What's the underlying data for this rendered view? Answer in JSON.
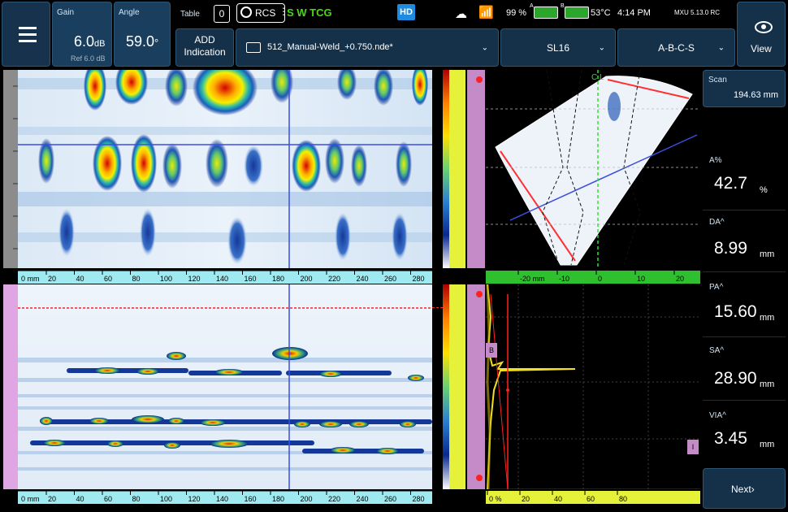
{
  "menu": {
    "icon": "hamburger-menu-icon"
  },
  "gain": {
    "label": "Gain",
    "value": "6.0",
    "unit": "dB",
    "ref": "Ref 6.0 dB"
  },
  "angle": {
    "label": "Angle",
    "value": "59.0",
    "unit": "°"
  },
  "table": {
    "label": "Table",
    "value": "0"
  },
  "rcs": {
    "label": "RCS",
    "icon": "rcs-icon"
  },
  "tcg_status": "S W TCG",
  "hd_badge": "HD",
  "status": {
    "battery_pct": "99 %",
    "battery_a": "A",
    "battery_b": "B",
    "temp": "53°C",
    "time": "4:14 PM",
    "version": "MXU 5.13.0 RC"
  },
  "view": {
    "label": "View",
    "icon": "eye-icon"
  },
  "add_indication": {
    "line1": "ADD",
    "line2": "Indication"
  },
  "file": {
    "name": "512_Manual-Weld_+0.750.nde*",
    "icon": "folder-icon"
  },
  "probe_select": {
    "value": "SL16"
  },
  "layout_select": {
    "value": "A-B-C-S"
  },
  "scan": {
    "label": "Scan",
    "value": "194.63",
    "unit": "mm"
  },
  "measurements": [
    {
      "label": "A%",
      "value": "42.7",
      "unit": "%"
    },
    {
      "label": "DA^",
      "value": "8.99",
      "unit": "mm"
    },
    {
      "label": "PA^",
      "value": "15.60",
      "unit": "mm"
    },
    {
      "label": "SA^",
      "value": "28.90",
      "unit": "mm"
    },
    {
      "label": "VIA^",
      "value": "3.45",
      "unit": "mm"
    }
  ],
  "next": {
    "label": "Next",
    "icon": "chevron-right-icon"
  },
  "scan_ruler": {
    "unit_label": "0 mm",
    "ticks": [
      "20",
      "40",
      "60",
      "80",
      "100",
      "120",
      "140",
      "160",
      "180",
      "200",
      "220",
      "240",
      "260",
      "280"
    ]
  },
  "sscan_ruler": {
    "ticks": [
      "-20 mm",
      "-10",
      "0",
      "10",
      "20"
    ]
  },
  "ascan_ruler": {
    "ticks": [
      "0 %",
      "20",
      "40",
      "60",
      "80"
    ]
  },
  "cl_label": "C L",
  "gate_labels": {
    "b_gate": "B",
    "i_gate": "I"
  },
  "colors": {
    "bg": "#000000",
    "toolbar": "#15314a",
    "accent_green": "#3dd400",
    "ruler_cyan": "#9feaf0",
    "cursor_blue": "#3a4fe0",
    "cursor_red": "#ff2020",
    "pink_scale": "#c58ac8",
    "yellow_scale": "#e6f23a"
  }
}
